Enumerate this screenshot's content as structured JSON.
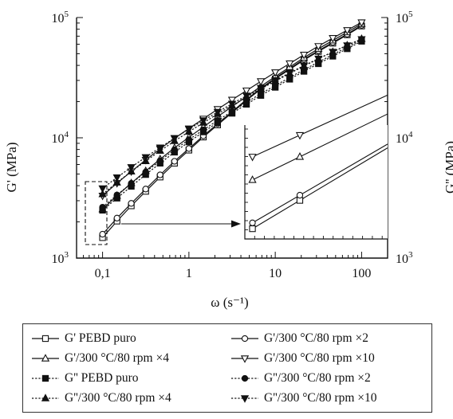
{
  "chart_data": {
    "type": "line",
    "xlabel": "ω (s⁻¹)",
    "ylabel_left": "G' (MPa)",
    "ylabel_right": "G'' (MPa)",
    "x_scale": "log",
    "y_scale": "log",
    "xlim": [
      0.05,
      200
    ],
    "ylim": [
      1000,
      100000
    ],
    "x_ticks": [
      {
        "value": 0.1,
        "label": "0,1"
      },
      {
        "value": 1,
        "label": "1"
      },
      {
        "value": 10,
        "label": "10"
      },
      {
        "value": 100,
        "label": "100"
      }
    ],
    "y_ticks": [
      {
        "value": 1000,
        "base": "10",
        "exp": "3"
      },
      {
        "value": 10000,
        "base": "10",
        "exp": "4"
      },
      {
        "value": 100000,
        "base": "10",
        "exp": "5"
      }
    ],
    "grid": false,
    "legend_placement": "below",
    "x": [
      0.1,
      0.147,
      0.215,
      0.316,
      0.464,
      0.681,
      1,
      1.47,
      2.15,
      3.16,
      4.64,
      6.81,
      10,
      14.7,
      21.5,
      31.6,
      46.4,
      68.1,
      100
    ],
    "series": [
      {
        "name": "G' PEBD puro",
        "marker": "square-open",
        "dash": "solid",
        "values": [
          1480,
          2030,
          2720,
          3590,
          4720,
          6150,
          7900,
          10150,
          12800,
          16200,
          20500,
          25400,
          30900,
          37100,
          44300,
          52200,
          61200,
          71800,
          85000
        ]
      },
      {
        "name": "G'/300 °C/80 rpm ×2",
        "marker": "circle-open",
        "dash": "solid",
        "values": [
          1580,
          2150,
          2850,
          3750,
          4920,
          6380,
          8150,
          10400,
          13100,
          16500,
          20800,
          25800,
          31400,
          37700,
          45000,
          53000,
          62200,
          72800,
          86200
        ]
      },
      {
        "name": "G'/300 °C/80 rpm ×4",
        "marker": "triangle-up-open",
        "dash": "solid",
        "values": [
          2550,
          3300,
          4200,
          5300,
          6650,
          8250,
          10100,
          12300,
          15000,
          18200,
          22000,
          26800,
          32300,
          38800,
          46400,
          55000,
          64500,
          75500,
          88500
        ]
      },
      {
        "name": "G'/300 °C/80 rpm ×10",
        "marker": "triangle-down-open",
        "dash": "solid",
        "values": [
          3300,
          4200,
          5250,
          6550,
          8100,
          9900,
          11950,
          14400,
          17300,
          20700,
          24700,
          29500,
          35000,
          41500,
          49000,
          57800,
          67500,
          78500,
          91000
        ]
      },
      {
        "name": "G'' PEBD puro",
        "marker": "square-filled",
        "dash": "dotted",
        "values": [
          2500,
          3150,
          3950,
          4950,
          6150,
          7600,
          9250,
          11200,
          13400,
          16000,
          19000,
          22500,
          26300,
          30700,
          35700,
          41300,
          47700,
          55000,
          63500
        ]
      },
      {
        "name": "G''/300 °C/80 rpm ×2",
        "marker": "circle-filled",
        "dash": "dotted",
        "values": [
          2650,
          3350,
          4180,
          5200,
          6450,
          7950,
          9650,
          11650,
          13950,
          16600,
          19700,
          23300,
          27200,
          31700,
          36900,
          42600,
          49200,
          56600,
          65000
        ]
      },
      {
        "name": "G''/300 °C/80 rpm ×4",
        "marker": "triangle-up-filled",
        "dash": "dotted",
        "values": [
          3400,
          4250,
          5250,
          6400,
          7800,
          9400,
          11250,
          13350,
          15800,
          18600,
          21800,
          25500,
          29600,
          34300,
          39500,
          45300,
          51800,
          58800,
          66500
        ]
      },
      {
        "name": "G''/300 °C/80 rpm ×10",
        "marker": "triangle-down-filled",
        "dash": "dotted",
        "values": [
          3800,
          4680,
          5700,
          6900,
          8300,
          9950,
          11800,
          13950,
          16400,
          19200,
          22400,
          26000,
          30100,
          34700,
          39800,
          45500,
          51800,
          58600,
          66000
        ]
      }
    ],
    "inset": {
      "type": "line",
      "series_shown": [
        "G' PEBD puro",
        "G'/300 °C/80 rpm ×2",
        "G'/300 °C/80 rpm ×4",
        "G'/300 °C/80 rpm ×10"
      ]
    }
  }
}
